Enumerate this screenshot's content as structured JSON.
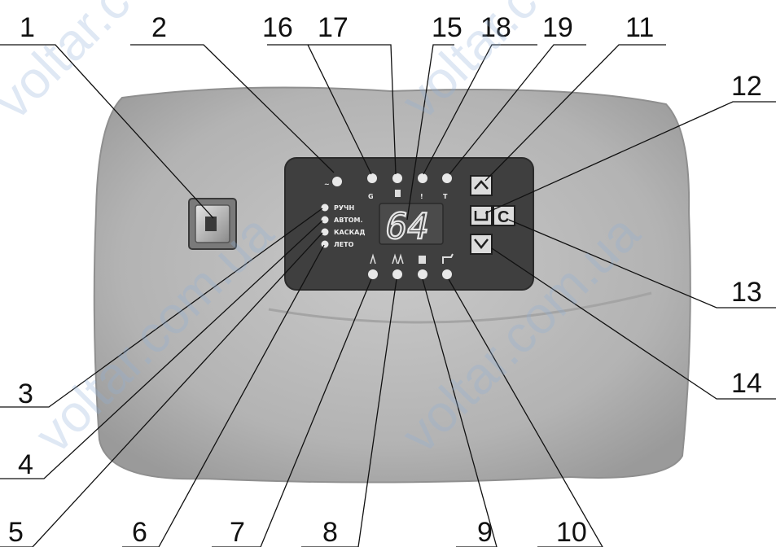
{
  "callouts": [
    "1",
    "2",
    "3",
    "4",
    "5",
    "6",
    "7",
    "8",
    "9",
    "10",
    "11",
    "12",
    "13",
    "14",
    "15",
    "16",
    "17",
    "18",
    "19"
  ],
  "panel": {
    "display_value": "64",
    "mode_labels": [
      "РУЧН",
      "АВТОМ.",
      "КАСКАД",
      "ЛЕТО"
    ],
    "indicator_symbols": {
      "power": "~",
      "gas": "G",
      "temperature": "T",
      "alarm": "!"
    },
    "c_button_label": "C"
  },
  "watermark": "voltar.com.ua"
}
